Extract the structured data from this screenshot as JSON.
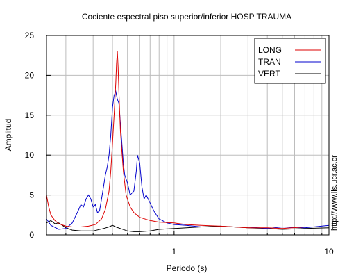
{
  "chart_data": {
    "type": "line",
    "title": "Cociente espectral piso superior/inferior  HOSP TRAUMA",
    "xlabel": "Periodo (s)",
    "ylabel": "Amplitud",
    "side_note": "http://www.lis.ucr.ac.cr",
    "x_scale": "log",
    "xlim": [
      0.15,
      10
    ],
    "ylim": [
      0,
      25
    ],
    "x_tick_labels": [
      "1",
      "10"
    ],
    "y_tick_labels": [
      "0",
      "5",
      "10",
      "15",
      "20",
      "25"
    ],
    "grid": true,
    "legend_position": "top-right",
    "series": [
      {
        "name": "LONG",
        "color": "#dd0000",
        "x": [
          0.15,
          0.155,
          0.16,
          0.17,
          0.18,
          0.2,
          0.22,
          0.25,
          0.28,
          0.31,
          0.34,
          0.36,
          0.38,
          0.39,
          0.4,
          0.41,
          0.42,
          0.425,
          0.43,
          0.435,
          0.44,
          0.45,
          0.47,
          0.49,
          0.52,
          0.55,
          0.6,
          0.7,
          0.8,
          1.0,
          1.2,
          1.5,
          2.0,
          3.0,
          4.0,
          5.0,
          7.0,
          10.0
        ],
        "y": [
          5.0,
          3.5,
          2.5,
          1.8,
          1.4,
          1.1,
          1.0,
          1.0,
          1.1,
          1.3,
          2.0,
          3.2,
          5.5,
          8.0,
          11.5,
          15.0,
          19.0,
          21.5,
          23.0,
          21.0,
          18.0,
          13.0,
          8.0,
          5.0,
          3.5,
          2.8,
          2.2,
          1.8,
          1.6,
          1.5,
          1.3,
          1.2,
          1.1,
          0.9,
          0.9,
          0.8,
          1.0,
          1.0
        ]
      },
      {
        "name": "TRAN",
        "color": "#0000cc",
        "x": [
          0.15,
          0.16,
          0.18,
          0.2,
          0.22,
          0.24,
          0.25,
          0.26,
          0.27,
          0.28,
          0.29,
          0.3,
          0.31,
          0.32,
          0.33,
          0.34,
          0.35,
          0.36,
          0.37,
          0.38,
          0.39,
          0.4,
          0.41,
          0.42,
          0.43,
          0.44,
          0.45,
          0.46,
          0.47,
          0.48,
          0.5,
          0.52,
          0.55,
          0.57,
          0.58,
          0.6,
          0.62,
          0.64,
          0.66,
          0.7,
          0.74,
          0.8,
          0.9,
          1.0,
          1.2,
          1.5,
          2.0,
          3.0,
          4.0,
          5.0,
          7.0,
          10.0
        ],
        "y": [
          2.0,
          1.2,
          0.7,
          0.8,
          1.5,
          3.0,
          3.8,
          3.5,
          4.5,
          5.0,
          4.5,
          3.5,
          3.8,
          2.8,
          3.0,
          4.5,
          6.0,
          7.5,
          8.5,
          10.0,
          12.5,
          16.0,
          17.5,
          18.0,
          17.0,
          16.5,
          14.0,
          11.5,
          9.0,
          7.5,
          6.5,
          5.0,
          5.5,
          8.0,
          10.0,
          9.0,
          6.0,
          4.5,
          5.0,
          4.0,
          3.0,
          2.0,
          1.5,
          1.3,
          1.2,
          1.0,
          1.0,
          1.0,
          0.8,
          1.0,
          0.9,
          1.2
        ]
      },
      {
        "name": "VERT",
        "color": "#000000",
        "x": [
          0.15,
          0.16,
          0.17,
          0.18,
          0.19,
          0.2,
          0.22,
          0.25,
          0.3,
          0.35,
          0.38,
          0.4,
          0.42,
          0.45,
          0.5,
          0.55,
          0.6,
          0.7,
          0.8,
          1.0,
          1.5,
          2.0,
          3.0,
          4.0,
          5.0,
          7.0,
          10.0
        ],
        "y": [
          1.5,
          1.8,
          1.4,
          1.5,
          1.2,
          0.9,
          0.6,
          0.5,
          0.5,
          0.8,
          1.0,
          1.2,
          1.0,
          0.8,
          0.5,
          0.4,
          0.4,
          0.5,
          0.7,
          0.8,
          1.0,
          1.1,
          0.9,
          0.8,
          0.7,
          0.8,
          0.9
        ]
      }
    ]
  }
}
